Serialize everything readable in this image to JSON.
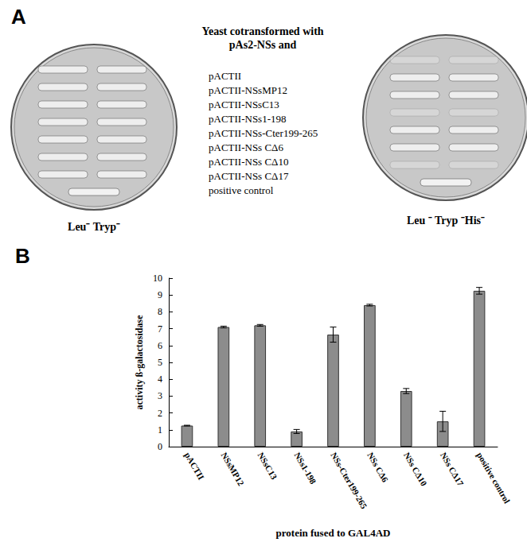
{
  "chart_data": {
    "type": "bar",
    "panel": "B",
    "categories": [
      "pACTII",
      "NSsMP12",
      "NSsC13",
      "NSs1-198",
      "NSs-Cter199-265",
      "NSs CΔ6",
      "NSs CΔ10",
      "NSs CΔ17",
      "positive control"
    ],
    "values": [
      1.25,
      7.1,
      7.2,
      0.9,
      6.65,
      8.4,
      3.3,
      1.5,
      9.25
    ],
    "errors": [
      0.02,
      0.05,
      0.05,
      0.12,
      0.45,
      0.05,
      0.15,
      0.6,
      0.2
    ],
    "color": "#8c8c8c",
    "ylabel": "activity ß-galactosidase",
    "xlabel": "protein fused to GAL4AD",
    "ylim": [
      0,
      10
    ],
    "yticks": [
      0,
      1,
      2,
      3,
      4,
      5,
      6,
      7,
      8,
      9,
      10
    ],
    "grid": false
  },
  "panel_a": {
    "label": "A",
    "heading": [
      "Yeast cotransformed with",
      "pAs2-NSs and"
    ],
    "items": [
      "pACTII",
      "pACTII-NSsMP12",
      "pACTII-NSsC13",
      "pACTII-NSs1-198",
      "pACTII-NSs-Cter199-265",
      "pACTII-NSs CΔ6",
      "pACTII-NSs CΔ10",
      "pACTII-NSs CΔ17",
      "positive control"
    ],
    "left_plate": "Leu⁻ Tryp⁻",
    "right_plate": "Leu ⁻ Tryp ⁻His⁻"
  }
}
